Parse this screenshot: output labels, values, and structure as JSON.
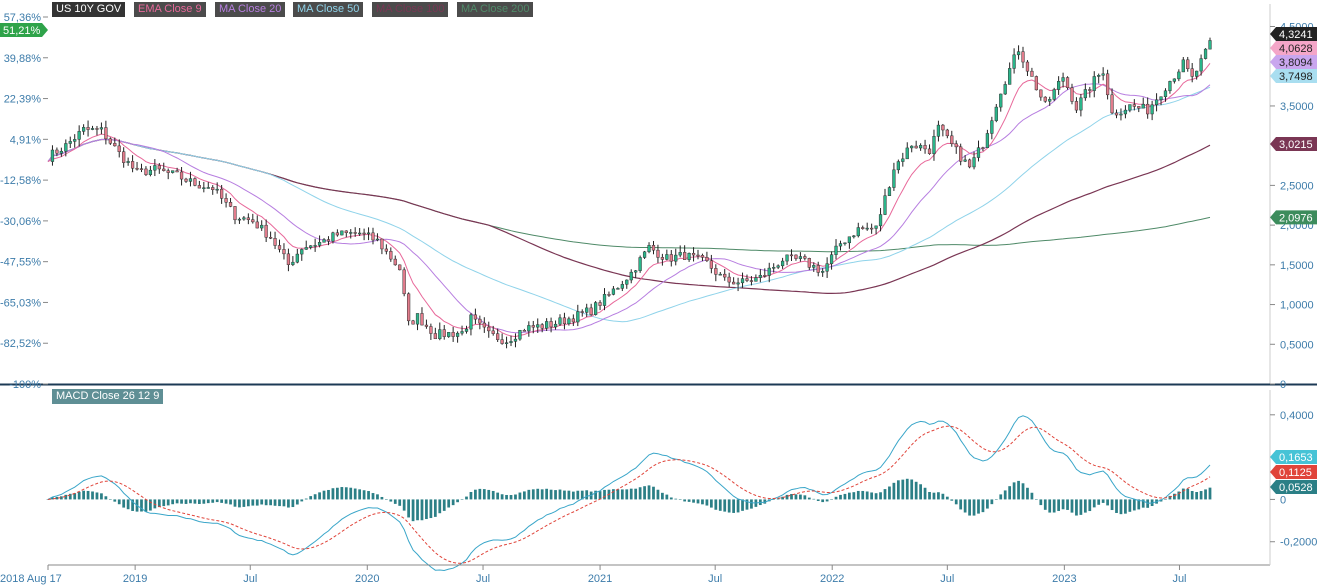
{
  "chart_data": [
    {
      "type": "candlestick",
      "title": "US 10Y GOV",
      "x_tick_labels": [
        "2018 Aug 17",
        "2019",
        "Jul",
        "2020",
        "Jul",
        "2021",
        "Jul",
        "2022",
        "Jul",
        "2023",
        "Jul"
      ],
      "x_tick_dates": [
        "2018-08-17",
        "2019-01-01",
        "2019-07-01",
        "2020-01-01",
        "2020-07-01",
        "2021-01-01",
        "2021-07-01",
        "2022-01-01",
        "2022-07-01",
        "2023-01-01",
        "2023-07-01"
      ],
      "y_right_ticks": [
        "4,5000",
        "3,5000",
        "2,5000",
        "2,0000",
        "1,5000",
        "1,0000",
        "0,5000",
        "0"
      ],
      "y_right_tick_values": [
        4.5,
        3.5,
        2.5,
        2.0,
        1.5,
        1.0,
        0.5,
        0
      ],
      "y_left_ticks": [
        "57,36%",
        "39,88%",
        "22,39%",
        "4,91%",
        "-12,58%",
        "-30,06%",
        "-47,55%",
        "-65,03%",
        "-82,52%",
        "-100%"
      ],
      "y_left_tick_values": [
        57.36,
        39.88,
        22.39,
        4.91,
        -12.58,
        -30.06,
        -47.55,
        -65.03,
        -82.52,
        -100
      ],
      "ylim": [
        0,
        4.67
      ],
      "change_badge": "51,21%",
      "legend": [
        {
          "label": "US 10Y GOV",
          "color": "#333333"
        },
        {
          "label": "EMA Close 9",
          "color": "#e8689a"
        },
        {
          "label": "MA Close 20",
          "color": "#b77ee0"
        },
        {
          "label": "MA Close 50",
          "color": "#8fd3ea"
        },
        {
          "label": "MA Close 100",
          "color": "#7a3654"
        },
        {
          "label": "MA Close 200",
          "color": "#4f8a68"
        }
      ],
      "value_badges": [
        {
          "label": "4,3241",
          "value": 4.3241,
          "color": "#222222"
        },
        {
          "label": "4,0628",
          "value": 4.0628,
          "color": "#f4a6c8"
        },
        {
          "label": "3,8094",
          "value": 3.8094,
          "color": "#c9a6ee"
        },
        {
          "label": "3,7498",
          "value": 3.7498,
          "color": "#a9def0"
        },
        {
          "label": "3,0215",
          "value": 3.0215,
          "color": "#7a3654"
        },
        {
          "label": "2,0976",
          "value": 2.0976,
          "color": "#3c8c5c"
        }
      ],
      "anchors": [
        [
          "2018-08-17",
          2.86
        ],
        [
          "2018-09-14",
          3.0
        ],
        [
          "2018-10-12",
          3.2
        ],
        [
          "2018-11-09",
          3.19
        ],
        [
          "2018-12-07",
          2.9
        ],
        [
          "2019-01-04",
          2.66
        ],
        [
          "2019-02-01",
          2.7
        ],
        [
          "2019-03-08",
          2.62
        ],
        [
          "2019-04-05",
          2.52
        ],
        [
          "2019-05-03",
          2.47
        ],
        [
          "2019-06-07",
          2.12
        ],
        [
          "2019-07-05",
          2.05
        ],
        [
          "2019-08-02",
          1.85
        ],
        [
          "2019-08-30",
          1.5
        ],
        [
          "2019-09-20",
          1.72
        ],
        [
          "2019-10-18",
          1.78
        ],
        [
          "2019-11-15",
          1.88
        ],
        [
          "2019-12-20",
          1.9
        ],
        [
          "2020-01-17",
          1.8
        ],
        [
          "2020-02-21",
          1.45
        ],
        [
          "2020-03-06",
          0.75
        ],
        [
          "2020-03-20",
          0.85
        ],
        [
          "2020-04-17",
          0.62
        ],
        [
          "2020-05-29",
          0.65
        ],
        [
          "2020-06-12",
          0.82
        ],
        [
          "2020-07-10",
          0.62
        ],
        [
          "2020-08-07",
          0.55
        ],
        [
          "2020-09-04",
          0.7
        ],
        [
          "2020-10-16",
          0.75
        ],
        [
          "2020-11-20",
          0.84
        ],
        [
          "2020-12-18",
          0.93
        ],
        [
          "2021-01-15",
          1.12
        ],
        [
          "2021-02-19",
          1.4
        ],
        [
          "2021-03-19",
          1.72
        ],
        [
          "2021-04-16",
          1.58
        ],
        [
          "2021-05-14",
          1.62
        ],
        [
          "2021-06-18",
          1.52
        ],
        [
          "2021-07-16",
          1.3
        ],
        [
          "2021-08-13",
          1.28
        ],
        [
          "2021-09-10",
          1.34
        ],
        [
          "2021-10-15",
          1.57
        ],
        [
          "2021-11-12",
          1.56
        ],
        [
          "2021-12-17",
          1.42
        ],
        [
          "2022-01-14",
          1.77
        ],
        [
          "2022-02-11",
          1.95
        ],
        [
          "2022-03-11",
          1.96
        ],
        [
          "2022-04-08",
          2.72
        ],
        [
          "2022-05-06",
          3.02
        ],
        [
          "2022-06-03",
          2.95
        ],
        [
          "2022-06-17",
          3.22
        ],
        [
          "2022-07-15",
          2.93
        ],
        [
          "2022-08-05",
          2.72
        ],
        [
          "2022-08-26",
          3.03
        ],
        [
          "2022-09-23",
          3.7
        ],
        [
          "2022-10-21",
          4.22
        ],
        [
          "2022-11-11",
          3.85
        ],
        [
          "2022-12-02",
          3.5
        ],
        [
          "2022-12-30",
          3.87
        ],
        [
          "2023-01-20",
          3.48
        ],
        [
          "2023-02-17",
          3.82
        ],
        [
          "2023-03-03",
          3.95
        ],
        [
          "2023-03-17",
          3.4
        ],
        [
          "2023-04-14",
          3.5
        ],
        [
          "2023-05-12",
          3.45
        ],
        [
          "2023-06-09",
          3.75
        ],
        [
          "2023-07-07",
          4.03
        ],
        [
          "2023-07-21",
          3.84
        ],
        [
          "2023-08-11",
          4.16
        ],
        [
          "2023-08-18",
          4.3241
        ]
      ]
    },
    {
      "type": "line",
      "title": "MACD Close 26 12 9",
      "y_ticks": [
        "0,4000",
        "0",
        "-0,2000"
      ],
      "y_tick_values": [
        0.4,
        0,
        -0.2
      ],
      "ylim": [
        -0.31,
        0.47
      ],
      "series_colors": {
        "macd": "#3aa6c9",
        "signal": "#e0443a",
        "histogram": "#2b7f86"
      },
      "value_badges": [
        {
          "label": "0,1653",
          "value": 0.1653,
          "color": "#46c3d6"
        },
        {
          "label": "0,1125",
          "value": 0.1125,
          "color": "#e0443a"
        },
        {
          "label": "0,0528",
          "value": 0.0528,
          "color": "#2b7f86"
        }
      ]
    }
  ]
}
